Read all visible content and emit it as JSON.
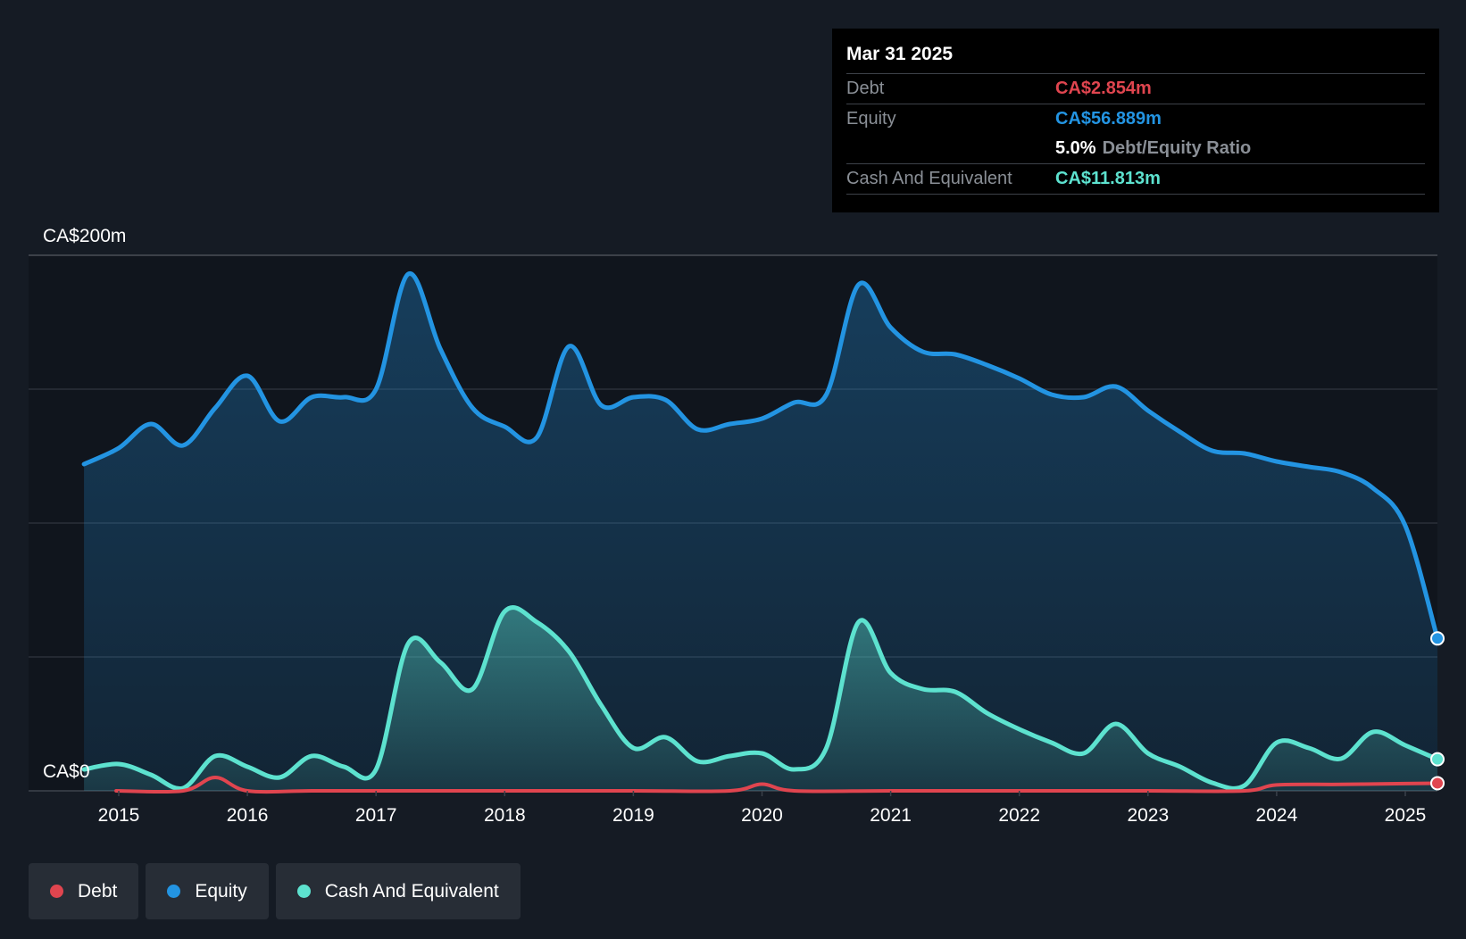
{
  "colors": {
    "debt": "#e0454f",
    "equity": "#2394e2",
    "cash": "#5de2cf",
    "background": "#151b24",
    "plot_background": "#10151d"
  },
  "tooltip": {
    "date": "Mar 31 2025",
    "rows": [
      {
        "label": "Debt",
        "value": "CA$2.854m",
        "color": "#e0454f"
      },
      {
        "label": "Equity",
        "value": "CA$56.889m",
        "color": "#2394e2"
      }
    ],
    "ratio_value": "5.0%",
    "ratio_label": "Debt/Equity Ratio",
    "cash_label": "Cash And Equivalent",
    "cash_value": "CA$11.813m"
  },
  "legend": [
    {
      "name": "Debt",
      "color": "#e0454f"
    },
    {
      "name": "Equity",
      "color": "#2394e2"
    },
    {
      "name": "Cash And Equivalent",
      "color": "#5de2cf"
    }
  ],
  "chart_data": {
    "type": "area",
    "title": "",
    "xlabel": "",
    "ylabel": "",
    "y_tick_labels": [
      {
        "value": 200,
        "label": "CA$200m"
      },
      {
        "value": 0,
        "label": "CA$0"
      }
    ],
    "ylim": [
      0,
      200
    ],
    "xlim": [
      2014.3,
      2025.25
    ],
    "x_ticks": [
      "2015",
      "2016",
      "2017",
      "2018",
      "2019",
      "2020",
      "2021",
      "2022",
      "2023",
      "2024",
      "2025"
    ],
    "grid": true,
    "legend_position": "bottom-left",
    "series": [
      {
        "name": "Equity",
        "fill": true,
        "points": [
          [
            2014.73,
            122
          ],
          [
            2015.0,
            128
          ],
          [
            2015.25,
            137
          ],
          [
            2015.5,
            129
          ],
          [
            2015.75,
            143
          ],
          [
            2016.0,
            155
          ],
          [
            2016.25,
            138
          ],
          [
            2016.5,
            147
          ],
          [
            2016.75,
            147
          ],
          [
            2017.0,
            150
          ],
          [
            2017.25,
            193
          ],
          [
            2017.5,
            165
          ],
          [
            2017.75,
            143
          ],
          [
            2018.0,
            136
          ],
          [
            2018.25,
            132
          ],
          [
            2018.5,
            166
          ],
          [
            2018.75,
            144
          ],
          [
            2019.0,
            147
          ],
          [
            2019.25,
            146
          ],
          [
            2019.5,
            135
          ],
          [
            2019.75,
            137
          ],
          [
            2020.0,
            139
          ],
          [
            2020.25,
            145
          ],
          [
            2020.5,
            148
          ],
          [
            2020.75,
            189
          ],
          [
            2021.0,
            173
          ],
          [
            2021.25,
            164
          ],
          [
            2021.5,
            163
          ],
          [
            2021.75,
            159
          ],
          [
            2022.0,
            154
          ],
          [
            2022.25,
            148
          ],
          [
            2022.5,
            147
          ],
          [
            2022.75,
            151
          ],
          [
            2023.0,
            142
          ],
          [
            2023.25,
            134
          ],
          [
            2023.5,
            127
          ],
          [
            2023.75,
            126
          ],
          [
            2024.0,
            123
          ],
          [
            2024.25,
            121
          ],
          [
            2024.5,
            119
          ],
          [
            2024.75,
            113
          ],
          [
            2025.0,
            99
          ],
          [
            2025.25,
            56.9
          ]
        ]
      },
      {
        "name": "Cash And Equivalent",
        "fill": true,
        "points": [
          [
            2014.73,
            8
          ],
          [
            2015.0,
            10
          ],
          [
            2015.25,
            6
          ],
          [
            2015.5,
            1
          ],
          [
            2015.75,
            13
          ],
          [
            2016.0,
            9
          ],
          [
            2016.25,
            5
          ],
          [
            2016.5,
            13
          ],
          [
            2016.75,
            9
          ],
          [
            2017.0,
            8
          ],
          [
            2017.25,
            55
          ],
          [
            2017.5,
            48
          ],
          [
            2017.75,
            38
          ],
          [
            2018.0,
            67
          ],
          [
            2018.25,
            63
          ],
          [
            2018.5,
            52
          ],
          [
            2018.75,
            32
          ],
          [
            2019.0,
            16
          ],
          [
            2019.25,
            20
          ],
          [
            2019.5,
            11
          ],
          [
            2019.75,
            13
          ],
          [
            2020.0,
            14
          ],
          [
            2020.25,
            8
          ],
          [
            2020.5,
            16
          ],
          [
            2020.75,
            63
          ],
          [
            2021.0,
            44
          ],
          [
            2021.25,
            38
          ],
          [
            2021.5,
            37
          ],
          [
            2021.75,
            29
          ],
          [
            2022.0,
            23
          ],
          [
            2022.25,
            18
          ],
          [
            2022.5,
            14
          ],
          [
            2022.75,
            25
          ],
          [
            2023.0,
            14
          ],
          [
            2023.25,
            9
          ],
          [
            2023.5,
            3
          ],
          [
            2023.75,
            2
          ],
          [
            2024.0,
            18
          ],
          [
            2024.25,
            16
          ],
          [
            2024.5,
            12
          ],
          [
            2024.75,
            22
          ],
          [
            2025.0,
            17
          ],
          [
            2025.25,
            11.8
          ]
        ]
      },
      {
        "name": "Debt",
        "fill": false,
        "points": [
          [
            2014.98,
            0
          ],
          [
            2015.5,
            0
          ],
          [
            2015.75,
            5
          ],
          [
            2016.0,
            0
          ],
          [
            2016.5,
            0
          ],
          [
            2017.0,
            0
          ],
          [
            2018.0,
            0
          ],
          [
            2019.0,
            0
          ],
          [
            2019.75,
            0
          ],
          [
            2020.0,
            2.5
          ],
          [
            2020.25,
            0
          ],
          [
            2021.0,
            0
          ],
          [
            2022.0,
            0
          ],
          [
            2023.0,
            0
          ],
          [
            2023.75,
            0
          ],
          [
            2024.0,
            2.2
          ],
          [
            2024.5,
            2.4
          ],
          [
            2025.0,
            2.7
          ],
          [
            2025.25,
            2.854
          ]
        ]
      }
    ]
  }
}
